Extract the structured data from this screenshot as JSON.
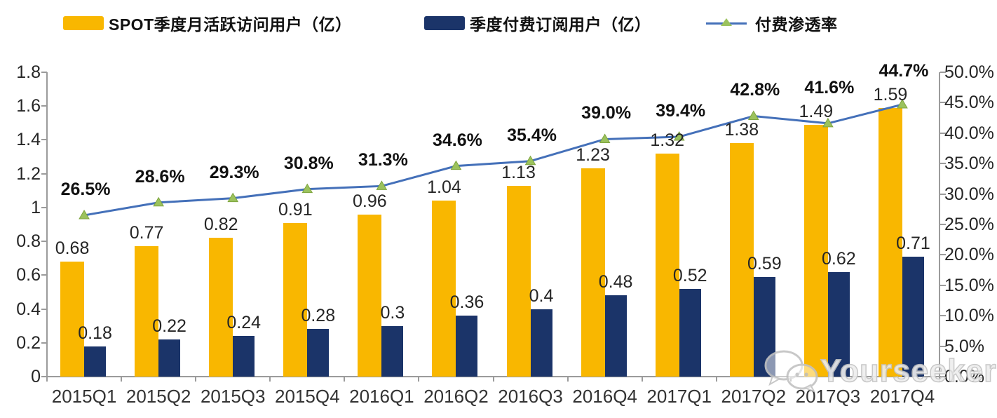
{
  "chart_data": {
    "type": "bar+line combo",
    "title": "",
    "legend_position": "top",
    "grid": false,
    "categories": [
      "2015Q1",
      "2015Q2",
      "2015Q3",
      "2015Q4",
      "2016Q1",
      "2016Q2",
      "2016Q3",
      "2016Q4",
      "2017Q1",
      "2017Q2",
      "2017Q3",
      "2017Q4"
    ],
    "series": [
      {
        "name": "SPOT季度月活跃访问用户（亿）",
        "type": "bar",
        "axis": "left",
        "color": "#F9B700",
        "values": [
          0.68,
          0.77,
          0.82,
          0.91,
          0.96,
          1.04,
          1.13,
          1.23,
          1.32,
          1.38,
          1.49,
          1.59
        ],
        "labels": [
          "0.68",
          "0.77",
          "0.82",
          "0.91",
          "0.96",
          "1.04",
          "1.13",
          "1.23",
          "1.32",
          "1.38",
          "1.49",
          "1.59"
        ]
      },
      {
        "name": "季度付费订阅用户（亿）",
        "type": "bar",
        "axis": "left",
        "color": "#1B3469",
        "values": [
          0.18,
          0.22,
          0.24,
          0.28,
          0.3,
          0.36,
          0.4,
          0.48,
          0.52,
          0.59,
          0.62,
          0.71
        ],
        "labels": [
          "0.18",
          "0.22",
          "0.24",
          "0.28",
          "0.3",
          "0.36",
          "0.4",
          "0.48",
          "0.52",
          "0.59",
          "0.62",
          "0.71"
        ]
      },
      {
        "name": "付费渗透率",
        "type": "line",
        "axis": "right",
        "color": "#4470B9",
        "marker": "triangle",
        "marker_color": "#9BC25D",
        "marker_stroke": "#7FA53F",
        "values": [
          26.5,
          28.6,
          29.3,
          30.8,
          31.3,
          34.6,
          35.4,
          39.0,
          39.4,
          42.8,
          41.6,
          44.7
        ],
        "labels": [
          "26.5%",
          "28.6%",
          "29.3%",
          "30.8%",
          "31.3%",
          "34.6%",
          "35.4%",
          "39.0%",
          "39.4%",
          "42.8%",
          "41.6%",
          "44.7%"
        ]
      }
    ],
    "left_axis": {
      "min": 0,
      "max": 1.8,
      "tick_labels": [
        "1.8",
        "1.6",
        "1.4",
        "1.2",
        "1",
        "0.8",
        "0.6",
        "0.4",
        "0.2",
        "0"
      ]
    },
    "right_axis": {
      "min": 0,
      "max": 50,
      "tick_labels": [
        "50.0%",
        "45.0%",
        "40.0%",
        "35.0%",
        "30.0%",
        "25.0%",
        "20.0%",
        "15.0%",
        "10.0%",
        "5.0%",
        "0.0%"
      ]
    }
  },
  "watermark": {
    "text": "Yourseeker",
    "icon": "wechat-icon"
  }
}
